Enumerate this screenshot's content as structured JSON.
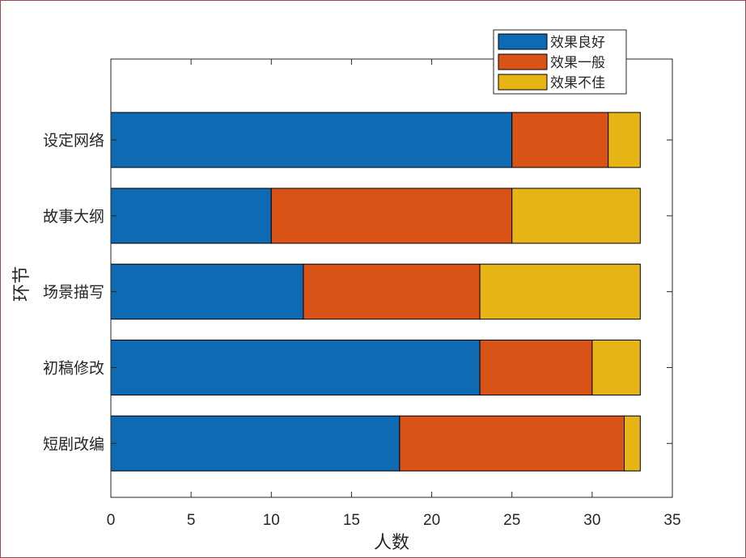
{
  "chart_data": {
    "type": "bar",
    "orientation": "horizontal",
    "stacked": true,
    "categories": [
      "设定网络",
      "故事大纲",
      "场景描写",
      "初稿修改",
      "短剧改编"
    ],
    "series": [
      {
        "name": "效果良好",
        "color": "#0d6ab3",
        "values": [
          25,
          10,
          12,
          23,
          18
        ]
      },
      {
        "name": "效果一般",
        "color": "#d95317",
        "values": [
          6,
          15,
          11,
          7,
          14
        ]
      },
      {
        "name": "效果不佳",
        "color": "#e7b415",
        "values": [
          2,
          8,
          10,
          3,
          1
        ]
      }
    ],
    "xlabel": "人数",
    "ylabel": "环节",
    "xlim": [
      0,
      35
    ],
    "xticks": [
      0,
      5,
      10,
      15,
      20,
      25,
      30,
      35
    ],
    "grid": false,
    "legend_position": "top-right"
  }
}
